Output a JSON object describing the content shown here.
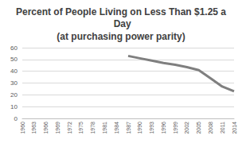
{
  "chart_data": {
    "type": "line",
    "title": "Percent of People Living on Less Than $1.25 a Day",
    "subtitle": "(at purchasing power parity)",
    "categories": [
      "1960",
      "1963",
      "1966",
      "1969",
      "1972",
      "1975",
      "1978",
      "1981",
      "1984",
      "1987",
      "1990",
      "1993",
      "1996",
      "1999",
      "2002",
      "2005",
      "2008",
      "2011",
      "2014"
    ],
    "values": [
      null,
      null,
      null,
      null,
      null,
      null,
      null,
      null,
      null,
      53,
      51,
      49,
      47,
      45.5,
      43.5,
      41,
      34,
      27,
      23
    ],
    "color": "#7f7f7f",
    "ylim": [
      0,
      60
    ],
    "yticks": [
      0,
      10,
      20,
      30,
      40,
      50,
      60
    ],
    "grid": true
  }
}
